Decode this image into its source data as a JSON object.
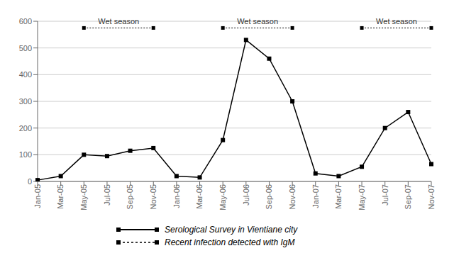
{
  "chart_data": {
    "type": "line",
    "categories": [
      "Jan-05",
      "Mar-05",
      "May-05",
      "Jul-05",
      "Sep-05",
      "Nov-05",
      "Jan-06",
      "Mar-06",
      "May-06",
      "Jul-06",
      "Sep-06",
      "Nov-06",
      "Jan-07",
      "Mar-07",
      "May-07",
      "Jul-07",
      "Sep-07",
      "Nov-07"
    ],
    "values": [
      5,
      20,
      100,
      95,
      115,
      125,
      20,
      15,
      155,
      530,
      460,
      300,
      30,
      20,
      55,
      200,
      260,
      65
    ],
    "color": "#000000",
    "marker": "square",
    "ylim": [
      0,
      600
    ],
    "yticks": [
      0,
      100,
      200,
      300,
      400,
      500,
      600
    ],
    "grid": true,
    "annotations": [
      {
        "text": "Wet season",
        "x_start": "May-05",
        "x_end": "Nov-05",
        "y": 575
      },
      {
        "text": "Wet season",
        "x_start": "May-06",
        "x_end": "Nov-06",
        "y": 575
      },
      {
        "text": "Wet season",
        "x_start": "May-07",
        "x_end": "Nov-07",
        "y": 575
      },
      {
        "text": "Serological Survey in Vientiane city",
        "line_style": "solid"
      },
      {
        "text": "Recent infection detected with IgM",
        "line_style": "dashed"
      }
    ]
  }
}
